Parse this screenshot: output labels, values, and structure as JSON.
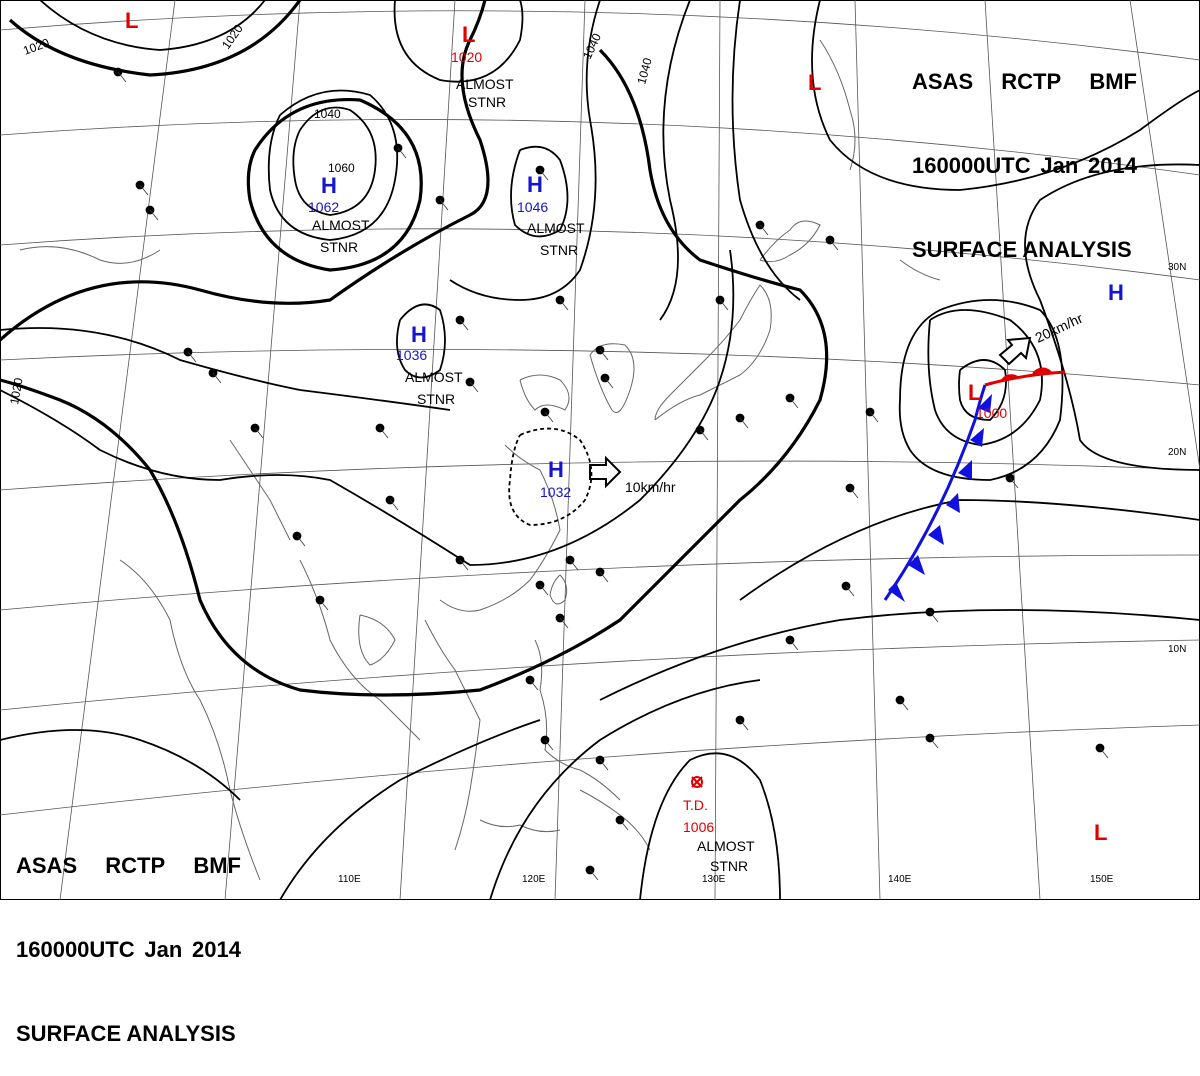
{
  "header": {
    "line1": [
      "ASAS",
      "RCTP",
      "BMF"
    ],
    "line2": [
      "160000UTC",
      "Jan",
      "2014"
    ],
    "line3": "SURFACE ANALYSIS"
  },
  "lat_labels": [
    "30N",
    "20N",
    "10N"
  ],
  "lon_labels": [
    "110E",
    "120E",
    "130E",
    "140E",
    "150E"
  ],
  "isobar_labels": [
    "1020",
    "1020",
    "1040",
    "1040",
    "1040",
    "1060",
    "1020"
  ],
  "pressure_centers": [
    {
      "type": "H",
      "value": "1062",
      "note": "ALMOST STNR"
    },
    {
      "type": "H",
      "value": "1046",
      "note": "ALMOST STNR"
    },
    {
      "type": "H",
      "value": "1036",
      "note": "ALMOST STNR"
    },
    {
      "type": "H",
      "value": "1032",
      "note": ""
    },
    {
      "type": "L",
      "value": "1020",
      "note": "ALMOST STNR"
    },
    {
      "type": "L",
      "value": "1000",
      "note": ""
    },
    {
      "type": "L",
      "value": "",
      "note": ""
    },
    {
      "type": "L",
      "value": "",
      "note": ""
    },
    {
      "type": "H",
      "value": "",
      "note": ""
    },
    {
      "type": "TD",
      "value": "1006",
      "note": "ALMOST STNR",
      "label": "T.D."
    }
  ],
  "movement": [
    {
      "text": "10km/hr"
    },
    {
      "text": "20km/hr"
    }
  ],
  "colors": {
    "high": "#1515d0",
    "low": "#e00000",
    "line": "#000000",
    "coast": "#666666",
    "grid": "#555555",
    "cold_front": "#1010e0",
    "warm_front": "#e00000"
  }
}
